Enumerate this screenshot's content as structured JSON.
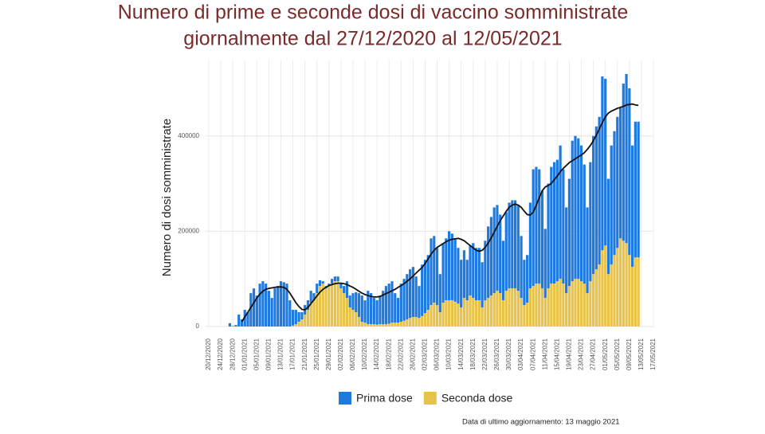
{
  "chart_data": {
    "type": "bar",
    "stacked": true,
    "title": [
      "Numero di prime e seconde dosi di vaccino somministrate",
      "giornalmente dal 27/12/2020 al 12/05/2021"
    ],
    "y_label": "Numero di dosi somministrate",
    "note": "Data di ultimo aggiornamento: 13 maggio 2021",
    "ylim": [
      0,
      560000
    ],
    "yticks": [
      0,
      200000,
      400000
    ],
    "xlim": [
      "20/12/2020",
      "17/05/2021"
    ],
    "xticks": [
      "20/12/2020",
      "24/12/2020",
      "28/12/2020",
      "01/01/2021",
      "05/01/2021",
      "09/01/2021",
      "13/01/2021",
      "17/01/2021",
      "21/01/2021",
      "25/01/2021",
      "29/01/2021",
      "02/02/2021",
      "06/02/2021",
      "10/02/2021",
      "14/02/2021",
      "18/02/2021",
      "22/02/2021",
      "26/02/2021",
      "02/03/2021",
      "06/03/2021",
      "10/03/2021",
      "14/03/2021",
      "18/03/2021",
      "22/03/2021",
      "26/03/2021",
      "30/03/2021",
      "03/04/2021",
      "07/04/2021",
      "11/04/2021",
      "15/04/2021",
      "19/04/2021",
      "23/04/2021",
      "27/04/2021",
      "01/05/2021",
      "05/05/2021",
      "09/05/2021",
      "13/05/2021",
      "17/05/2021"
    ],
    "grid": true,
    "legend": "bottom",
    "x": [
      "27/12/2020",
      "28/12/2020",
      "29/12/2020",
      "30/12/2020",
      "31/12/2020",
      "01/01/2021",
      "02/01/2021",
      "03/01/2021",
      "04/01/2021",
      "05/01/2021",
      "06/01/2021",
      "07/01/2021",
      "08/01/2021",
      "09/01/2021",
      "10/01/2021",
      "11/01/2021",
      "12/01/2021",
      "13/01/2021",
      "14/01/2021",
      "15/01/2021",
      "16/01/2021",
      "17/01/2021",
      "18/01/2021",
      "19/01/2021",
      "20/01/2021",
      "21/01/2021",
      "22/01/2021",
      "23/01/2021",
      "24/01/2021",
      "25/01/2021",
      "26/01/2021",
      "27/01/2021",
      "28/01/2021",
      "29/01/2021",
      "30/01/2021",
      "31/01/2021",
      "01/02/2021",
      "02/02/2021",
      "03/02/2021",
      "04/02/2021",
      "05/02/2021",
      "06/02/2021",
      "07/02/2021",
      "08/02/2021",
      "09/02/2021",
      "10/02/2021",
      "11/02/2021",
      "12/02/2021",
      "13/02/2021",
      "14/02/2021",
      "15/02/2021",
      "16/02/2021",
      "17/02/2021",
      "18/02/2021",
      "19/02/2021",
      "20/02/2021",
      "21/02/2021",
      "22/02/2021",
      "23/02/2021",
      "24/02/2021",
      "25/02/2021",
      "26/02/2021",
      "27/02/2021",
      "28/02/2021",
      "01/03/2021",
      "02/03/2021",
      "03/03/2021",
      "04/03/2021",
      "05/03/2021",
      "06/03/2021",
      "07/03/2021",
      "08/03/2021",
      "09/03/2021",
      "10/03/2021",
      "11/03/2021",
      "12/03/2021",
      "13/03/2021",
      "14/03/2021",
      "15/03/2021",
      "16/03/2021",
      "17/03/2021",
      "18/03/2021",
      "19/03/2021",
      "20/03/2021",
      "21/03/2021",
      "22/03/2021",
      "23/03/2021",
      "24/03/2021",
      "25/03/2021",
      "26/03/2021",
      "27/03/2021",
      "28/03/2021",
      "29/03/2021",
      "30/03/2021",
      "31/03/2021",
      "01/04/2021",
      "02/04/2021",
      "03/04/2021",
      "04/04/2021",
      "05/04/2021",
      "06/04/2021",
      "07/04/2021",
      "08/04/2021",
      "09/04/2021",
      "10/04/2021",
      "11/04/2021",
      "12/04/2021",
      "13/04/2021",
      "14/04/2021",
      "15/04/2021",
      "16/04/2021",
      "17/04/2021",
      "18/04/2021",
      "19/04/2021",
      "20/04/2021",
      "21/04/2021",
      "22/04/2021",
      "23/04/2021",
      "24/04/2021",
      "25/04/2021",
      "26/04/2021",
      "27/04/2021",
      "28/04/2021",
      "29/04/2021",
      "30/04/2021",
      "01/05/2021",
      "02/05/2021",
      "03/05/2021",
      "04/05/2021",
      "05/05/2021",
      "06/05/2021",
      "07/05/2021",
      "08/05/2021",
      "09/05/2021",
      "10/05/2021",
      "11/05/2021",
      "12/05/2021"
    ],
    "series": [
      {
        "name": "Prima dose",
        "color": "#1f7ae0",
        "values": [
          7000,
          1000,
          3000,
          25000,
          15000,
          35000,
          30000,
          70000,
          80000,
          65000,
          90000,
          95000,
          90000,
          75000,
          60000,
          80000,
          85000,
          95000,
          93000,
          90000,
          55000,
          33000,
          30000,
          20000,
          15000,
          20000,
          20000,
          25000,
          15000,
          20000,
          12000,
          5000,
          5000,
          5000,
          10000,
          10000,
          10000,
          10000,
          15000,
          35000,
          25000,
          35000,
          42000,
          50000,
          55000,
          47000,
          70000,
          65000,
          55000,
          51000,
          60000,
          70000,
          80000,
          84000,
          87000,
          62000,
          52000,
          80000,
          88000,
          95000,
          102000,
          105000,
          85000,
          67000,
          108000,
          112000,
          115000,
          140000,
          140000,
          120000,
          80000,
          125000,
          130000,
          145000,
          140000,
          133000,
          117000,
          100000,
          100000,
          85000,
          105000,
          115000,
          110000,
          110000,
          95000,
          125000,
          150000,
          165000,
          180000,
          180000,
          165000,
          125000,
          165000,
          180000,
          185000,
          185000,
          180000,
          130000,
          95000,
          100000,
          180000,
          245000,
          245000,
          240000,
          205000,
          145000,
          220000,
          245000,
          255000,
          255000,
          280000,
          240000,
          180000,
          225000,
          295000,
          300000,
          295000,
          285000,
          250000,
          180000,
          250000,
          290000,
          300000,
          310000,
          365000,
          350000,
          200000,
          250000,
          260000,
          275000,
          275000,
          330000,
          355000,
          350000,
          255000,
          285000,
          285000
        ]
      },
      {
        "name": "Seconda dose",
        "color": "#e8c34a",
        "values": [
          0,
          0,
          0,
          0,
          0,
          0,
          0,
          0,
          0,
          0,
          0,
          0,
          0,
          0,
          0,
          0,
          0,
          0,
          0,
          0,
          0,
          2000,
          5000,
          10000,
          15000,
          25000,
          35000,
          50000,
          55000,
          70000,
          85000,
          90000,
          80000,
          85000,
          90000,
          95000,
          95000,
          80000,
          70000,
          60000,
          40000,
          35000,
          30000,
          20000,
          10000,
          8000,
          5000,
          5000,
          5000,
          4000,
          5000,
          5000,
          5000,
          6000,
          8000,
          8000,
          8000,
          10000,
          12000,
          15000,
          18000,
          20000,
          20000,
          18000,
          22000,
          28000,
          35000,
          45000,
          50000,
          45000,
          30000,
          50000,
          55000,
          55000,
          55000,
          52000,
          48000,
          40000,
          60000,
          55000,
          65000,
          60000,
          55000,
          55000,
          40000,
          55000,
          60000,
          65000,
          70000,
          75000,
          70000,
          55000,
          75000,
          80000,
          80000,
          80000,
          75000,
          60000,
          45000,
          50000,
          80000,
          85000,
          90000,
          90000,
          80000,
          60000,
          80000,
          90000,
          90000,
          95000,
          100000,
          90000,
          70000,
          85000,
          95000,
          100000,
          100000,
          95000,
          90000,
          70000,
          95000,
          110000,
          120000,
          130000,
          160000,
          170000,
          110000,
          130000,
          150000,
          165000,
          185000,
          180000,
          175000,
          150000,
          125000,
          145000,
          145000
        ]
      },
      {
        "type": "line",
        "color": "#111111",
        "values": [
          null,
          null,
          null,
          null,
          10000,
          20000,
          30000,
          40000,
          50000,
          60000,
          68000,
          74000,
          78000,
          80000,
          81000,
          82000,
          83000,
          83000,
          82000,
          78000,
          70000,
          60000,
          50000,
          42000,
          36000,
          35000,
          40000,
          48000,
          56000,
          64000,
          72000,
          78000,
          82000,
          86000,
          88000,
          90000,
          91000,
          91000,
          90000,
          88000,
          85000,
          82000,
          78000,
          74000,
          70000,
          67000,
          65000,
          63000,
          62000,
          62000,
          63000,
          66000,
          69000,
          72000,
          75000,
          78000,
          82000,
          86000,
          90000,
          95000,
          100000,
          106000,
          112000,
          118000,
          124000,
          132000,
          142000,
          152000,
          160000,
          166000,
          170000,
          174000,
          178000,
          181000,
          183000,
          184000,
          185000,
          183000,
          180000,
          175000,
          170000,
          165000,
          160000,
          158000,
          160000,
          166000,
          175000,
          186000,
          198000,
          210000,
          222000,
          232000,
          242000,
          250000,
          255000,
          257000,
          255000,
          250000,
          242000,
          235000,
          234000,
          240000,
          255000,
          270000,
          285000,
          293000,
          296000,
          300000,
          308000,
          316000,
          325000,
          332000,
          338000,
          344000,
          348000,
          352000,
          356000,
          360000,
          365000,
          372000,
          380000,
          390000,
          402000,
          415000,
          428000,
          440000,
          448000,
          452000,
          455000,
          458000,
          460000,
          462000,
          465000,
          466000,
          467000,
          465000,
          464000
        ]
      }
    ]
  }
}
